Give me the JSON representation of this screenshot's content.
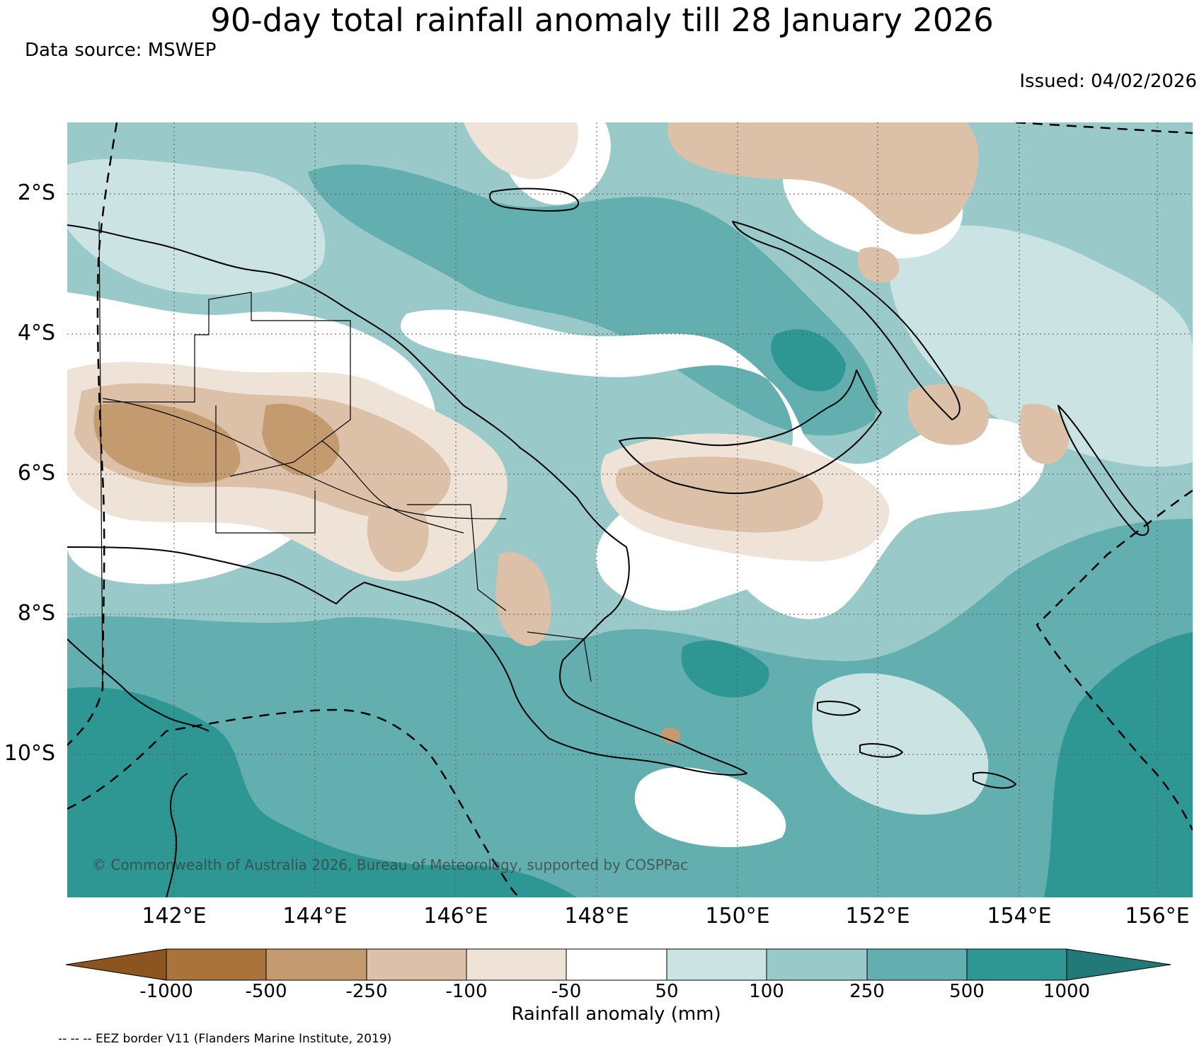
{
  "header": {
    "title": "90-day total rainfall anomaly till 28 January 2026",
    "data_source": "Data source: MSWEP",
    "issued": "Issued: 04/02/2026"
  },
  "map": {
    "region": "Papua New Guinea",
    "lon_range": [
      140.1,
      156.4
    ],
    "lat_range": [
      -12.2,
      -1.0
    ],
    "lat_ticks": [
      "2°S",
      "4°S",
      "6°S",
      "8°S",
      "10°S"
    ],
    "lon_ticks": [
      "142°E",
      "144°E",
      "146°E",
      "148°E",
      "150°E",
      "152°E",
      "154°E",
      "156°E"
    ],
    "grid": "dotted",
    "copyright": "© Commonwealth of Australia 2026, Bureau of Meteorology, supported by COSPPac"
  },
  "colorbar": {
    "title": "Rainfall anomaly (mm)",
    "tick_labels": [
      "-1000",
      "-500",
      "-250",
      "-100",
      "-50",
      "50",
      "100",
      "250",
      "500",
      "1000"
    ],
    "colors": [
      "#8c5520",
      "#aa733c",
      "#c49a6f",
      "#dcc0a7",
      "#efe3d8",
      "#ffffff",
      "#cbe3e3",
      "#99c9c9",
      "#63afaf",
      "#2e9693",
      "#217a77"
    ]
  },
  "footer": {
    "eez_note": "-- -- -- EEZ border V11 (Flanders Marine Institute, 2019)"
  }
}
